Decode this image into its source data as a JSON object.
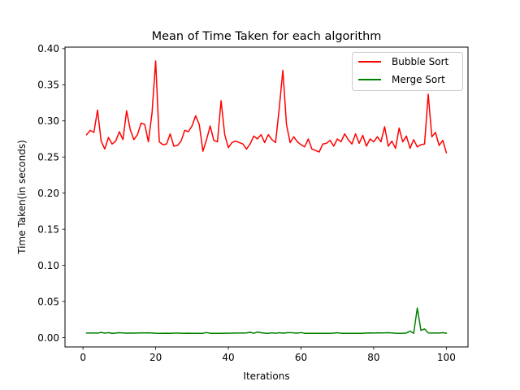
{
  "chart_data": {
    "type": "line",
    "title": "Mean of Time Taken for each algorithm",
    "xlabel": "Iterations",
    "ylabel": "Time Taken(in seconds)",
    "xlim": [
      -4.95,
      105.95
    ],
    "ylim": [
      -0.0129,
      0.4021
    ],
    "xticks": [
      0,
      20,
      40,
      60,
      80,
      100
    ],
    "xtick_labels": [
      "0",
      "20",
      "40",
      "60",
      "80",
      "100"
    ],
    "yticks": [
      0.0,
      0.05,
      0.1,
      0.15,
      0.2,
      0.25,
      0.3,
      0.35,
      0.4
    ],
    "ytick_labels": [
      "0.00",
      "0.05",
      "0.10",
      "0.15",
      "0.20",
      "0.25",
      "0.30",
      "0.35",
      "0.40"
    ],
    "grid": false,
    "legend_position": "top-right",
    "x": [
      1,
      2,
      3,
      4,
      5,
      6,
      7,
      8,
      9,
      10,
      11,
      12,
      13,
      14,
      15,
      16,
      17,
      18,
      19,
      20,
      21,
      22,
      23,
      24,
      25,
      26,
      27,
      28,
      29,
      30,
      31,
      32,
      33,
      34,
      35,
      36,
      37,
      38,
      39,
      40,
      41,
      42,
      43,
      44,
      45,
      46,
      47,
      48,
      49,
      50,
      51,
      52,
      53,
      54,
      55,
      56,
      57,
      58,
      59,
      60,
      61,
      62,
      63,
      64,
      65,
      66,
      67,
      68,
      69,
      70,
      71,
      72,
      73,
      74,
      75,
      76,
      77,
      78,
      79,
      80,
      81,
      82,
      83,
      84,
      85,
      86,
      87,
      88,
      89,
      90,
      91,
      92,
      93,
      94,
      95,
      96,
      97,
      98,
      99,
      100
    ],
    "series": [
      {
        "name": "Bubble Sort",
        "color": "#ff0000",
        "values": [
          0.281,
          0.287,
          0.284,
          0.315,
          0.272,
          0.261,
          0.277,
          0.268,
          0.272,
          0.285,
          0.274,
          0.314,
          0.288,
          0.274,
          0.281,
          0.297,
          0.295,
          0.271,
          0.311,
          0.383,
          0.271,
          0.267,
          0.268,
          0.282,
          0.265,
          0.266,
          0.272,
          0.287,
          0.285,
          0.293,
          0.307,
          0.295,
          0.258,
          0.274,
          0.293,
          0.273,
          0.271,
          0.328,
          0.281,
          0.263,
          0.27,
          0.272,
          0.27,
          0.268,
          0.261,
          0.268,
          0.279,
          0.275,
          0.281,
          0.27,
          0.281,
          0.274,
          0.27,
          0.317,
          0.37,
          0.295,
          0.27,
          0.278,
          0.271,
          0.267,
          0.264,
          0.275,
          0.261,
          0.259,
          0.257,
          0.268,
          0.269,
          0.273,
          0.265,
          0.275,
          0.271,
          0.282,
          0.274,
          0.268,
          0.282,
          0.269,
          0.28,
          0.265,
          0.275,
          0.271,
          0.278,
          0.271,
          0.292,
          0.265,
          0.272,
          0.262,
          0.29,
          0.271,
          0.279,
          0.262,
          0.274,
          0.264,
          0.267,
          0.268,
          0.337,
          0.278,
          0.284,
          0.266,
          0.273,
          0.256
        ]
      },
      {
        "name": "Merge Sort",
        "color": "#008000",
        "values": [
          0.0063,
          0.0063,
          0.0063,
          0.0062,
          0.0072,
          0.0062,
          0.0069,
          0.0058,
          0.0063,
          0.0068,
          0.0065,
          0.0061,
          0.0063,
          0.0062,
          0.0064,
          0.0066,
          0.0065,
          0.0066,
          0.0064,
          0.0061,
          0.006,
          0.006,
          0.0061,
          0.006,
          0.0062,
          0.0062,
          0.0061,
          0.006,
          0.0061,
          0.0059,
          0.0059,
          0.0059,
          0.006,
          0.007,
          0.006,
          0.0059,
          0.006,
          0.006,
          0.0061,
          0.0061,
          0.0062,
          0.0063,
          0.0063,
          0.0064,
          0.0065,
          0.0075,
          0.006,
          0.0078,
          0.0068,
          0.0062,
          0.006,
          0.0066,
          0.006,
          0.0068,
          0.0062,
          0.0066,
          0.007,
          0.0065,
          0.0062,
          0.007,
          0.006,
          0.006,
          0.006,
          0.006,
          0.006,
          0.006,
          0.0059,
          0.006,
          0.0062,
          0.0068,
          0.006,
          0.0059,
          0.0059,
          0.0059,
          0.006,
          0.0059,
          0.006,
          0.0063,
          0.0065,
          0.0063,
          0.0066,
          0.0065,
          0.0067,
          0.0068,
          0.0065,
          0.0061,
          0.006,
          0.0061,
          0.0064,
          0.009,
          0.006,
          0.041,
          0.01,
          0.012,
          0.0065,
          0.0063,
          0.0064,
          0.0063,
          0.0068,
          0.0062
        ]
      }
    ]
  }
}
